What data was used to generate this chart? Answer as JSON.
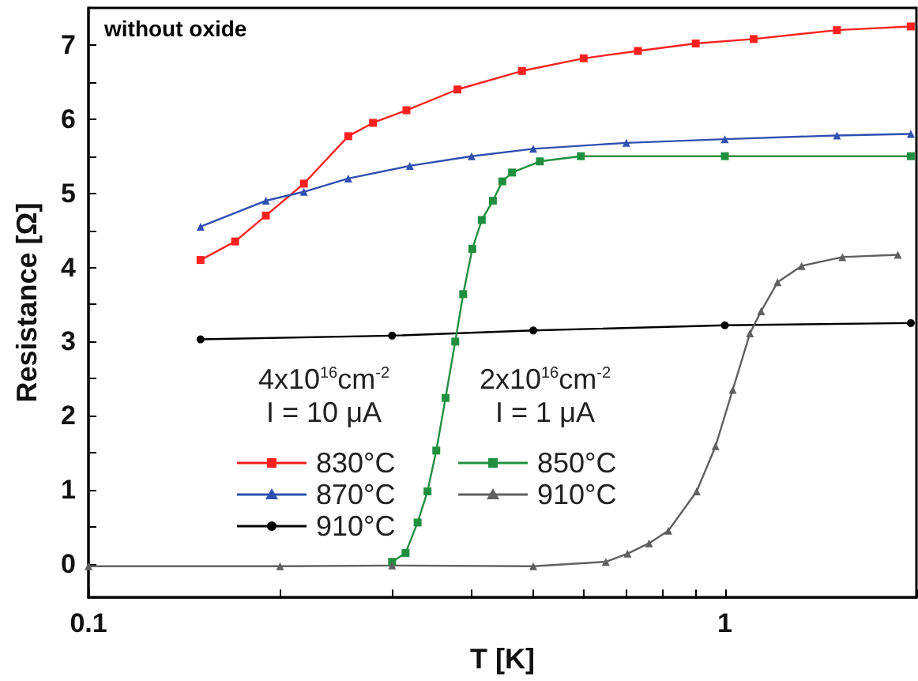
{
  "chart_data": {
    "type": "line",
    "xlabel": "T [K]",
    "ylabel": "Resistance [Ω]",
    "annotations": [
      "without oxide",
      "4x10$^{16}$cm$^{-2}$\nI = 10 μA",
      "2x10$^{16}$cm$^{-2}$\nI = 1 μA"
    ],
    "log": "x",
    "grid": false,
    "legend": "bottom left",
    "xlim": [
      0.1,
      2
    ],
    "xticks": [
      0.1,
      {
        "value": 0.2,
        "label": null
      },
      {
        "value": 0.3,
        "label": null
      },
      {
        "value": 0.4,
        "label": null
      },
      {
        "value": 0.5,
        "label": null
      },
      {
        "value": 0.6,
        "label": null
      },
      {
        "value": 0.7,
        "label": null
      },
      {
        "value": 0.8,
        "label": null
      },
      {
        "value": 0.9,
        "label": null
      },
      1,
      {
        "value": 2,
        "label": null
      }
    ],
    "ylim": [
      -0.45,
      7.5
    ],
    "yticks": [
      0,
      {
        "value": 0.5,
        "label": null
      },
      1,
      {
        "value": 1.5,
        "label": null
      },
      2,
      {
        "value": 2.5,
        "label": null
      },
      3,
      {
        "value": 3.5,
        "label": null
      },
      4,
      {
        "value": 4.5,
        "label": null
      },
      5,
      {
        "value": 5.5,
        "label": null
      },
      6,
      {
        "value": 6.5,
        "label": null
      },
      7
    ],
    "series": [
      {
        "name": "830°C",
        "color": "#ff2020",
        "marker": "square",
        "x": [
          0.15,
          0.17,
          0.19,
          0.218,
          0.256,
          0.28,
          0.316,
          0.38,
          0.48,
          0.6,
          0.73,
          0.9,
          1.11,
          1.5,
          1.96
        ],
        "values": [
          4.1,
          4.35,
          4.7,
          5.13,
          5.77,
          5.95,
          6.12,
          6.4,
          6.65,
          6.82,
          6.92,
          7.02,
          7.08,
          7.2,
          7.25
        ]
      },
      {
        "name": "870°C",
        "color": "#3050b0",
        "marker": "triangle",
        "x": [
          0.15,
          0.19,
          0.218,
          0.256,
          0.32,
          0.4,
          0.5,
          0.7,
          1,
          1.5,
          1.96
        ],
        "values": [
          4.55,
          4.9,
          5.02,
          5.2,
          5.37,
          5.5,
          5.6,
          5.68,
          5.73,
          5.78,
          5.8
        ]
      },
      {
        "name": "910°C",
        "color": "#000000",
        "marker": "circle",
        "x": [
          0.15,
          0.3,
          0.5,
          1,
          1.96
        ],
        "values": [
          3.03,
          3.08,
          3.15,
          3.22,
          3.25
        ]
      },
      {
        "name": "850°C",
        "color": "#209040",
        "marker": "square",
        "x": [
          0.3,
          0.315,
          0.329,
          0.341,
          0.352,
          0.364,
          0.377,
          0.388,
          0.401,
          0.415,
          0.432,
          0.447,
          0.463,
          0.512,
          0.594,
          1,
          1.96
        ],
        "values": [
          0.03,
          0.15,
          0.56,
          0.98,
          1.53,
          2.24,
          3.0,
          3.64,
          4.25,
          4.64,
          4.9,
          5.16,
          5.28,
          5.43,
          5.5,
          5.5,
          5.5
        ]
      },
      {
        "name": "910°C",
        "color": "#606060",
        "marker": "triangle",
        "x": [
          0.1,
          0.2,
          0.3,
          0.5,
          0.65,
          0.703,
          0.76,
          0.815,
          0.903,
          0.967,
          1.029,
          1.095,
          1.14,
          1.21,
          1.32,
          1.53,
          1.87
        ],
        "values": [
          -0.03,
          -0.03,
          -0.02,
          -0.03,
          0.03,
          0.14,
          0.28,
          0.45,
          0.98,
          1.59,
          2.35,
          3.11,
          3.41,
          3.8,
          4.02,
          4.14,
          4.17
        ]
      }
    ]
  }
}
